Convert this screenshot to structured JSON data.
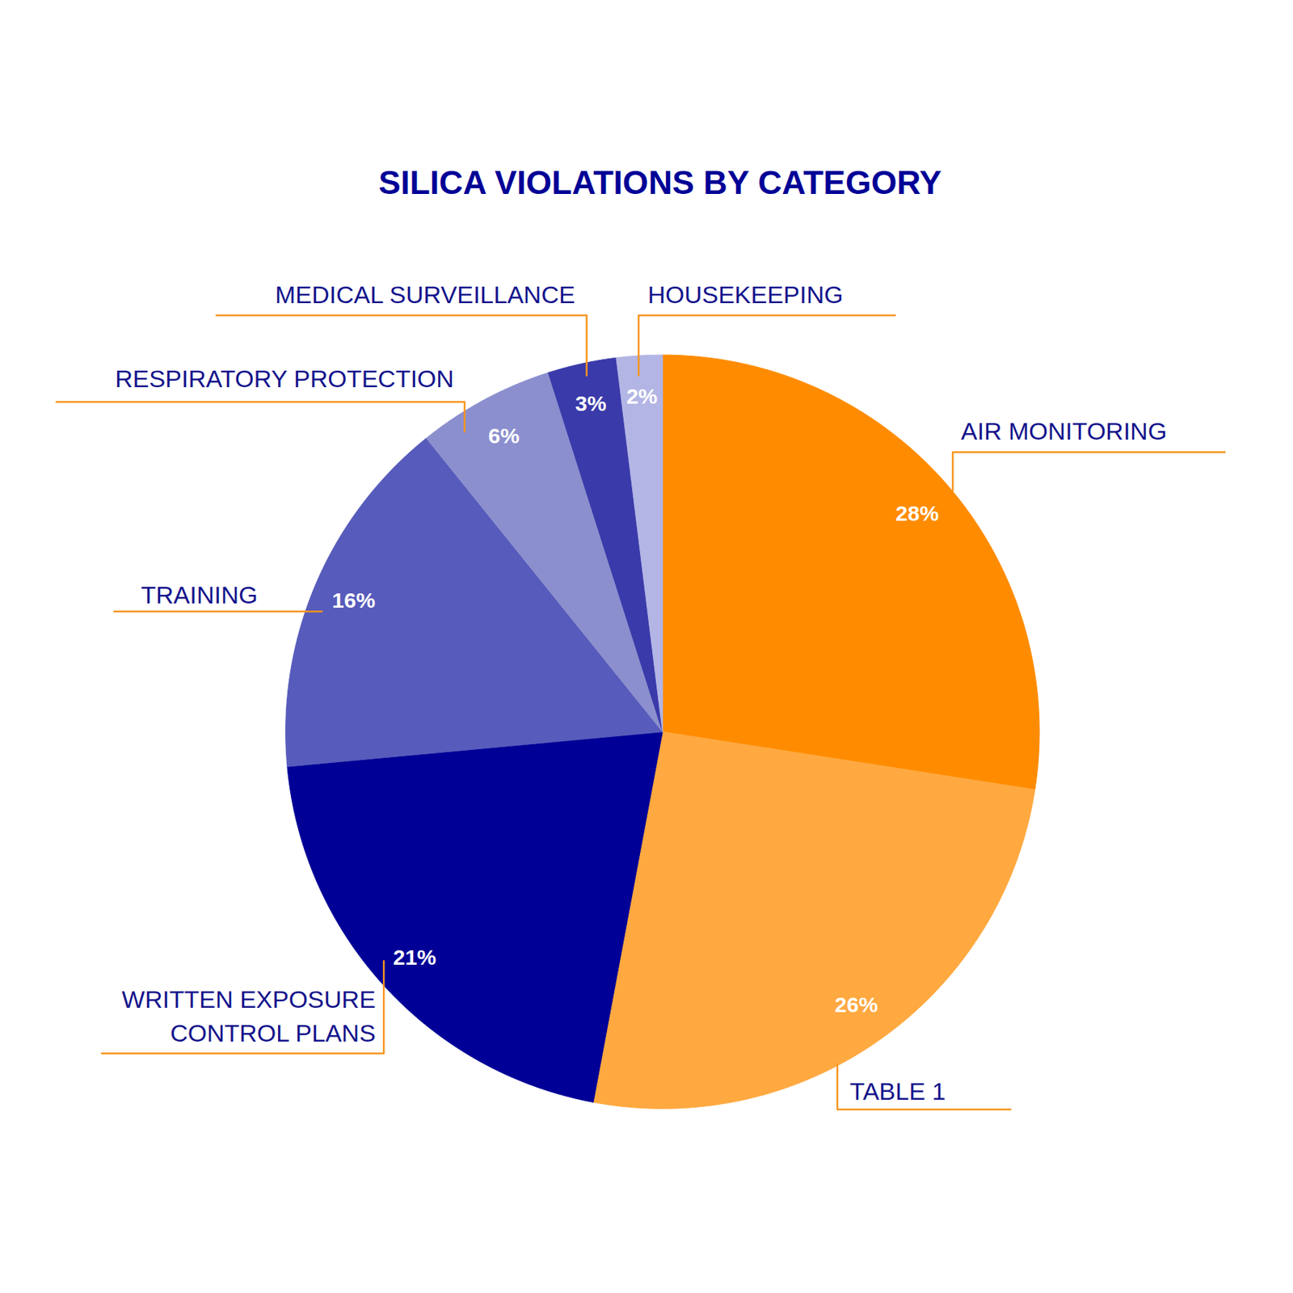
{
  "chart_data": {
    "type": "pie",
    "title": "SILICA VIOLATIONS BY CATEGORY",
    "categories": [
      "AIR MONITORING",
      "TABLE 1",
      "WRITTEN EXPOSURE\nCONTROL PLANS",
      "TRAINING",
      "RESPIRATORY PROTECTION",
      "MEDICAL SURVEILLANCE",
      "HOUSEKEEPING"
    ],
    "values": [
      28,
      26,
      21,
      16,
      6,
      3,
      2
    ],
    "value_labels": [
      "28%",
      "26%",
      "21%",
      "16%",
      "6%",
      "3%",
      "2%"
    ],
    "colors": [
      "#ff8c00",
      "#ffa940",
      "#000096",
      "#575bbb",
      "#8b8fce",
      "#3a3aaa",
      "#b3b5e4"
    ],
    "data_labels": true
  }
}
